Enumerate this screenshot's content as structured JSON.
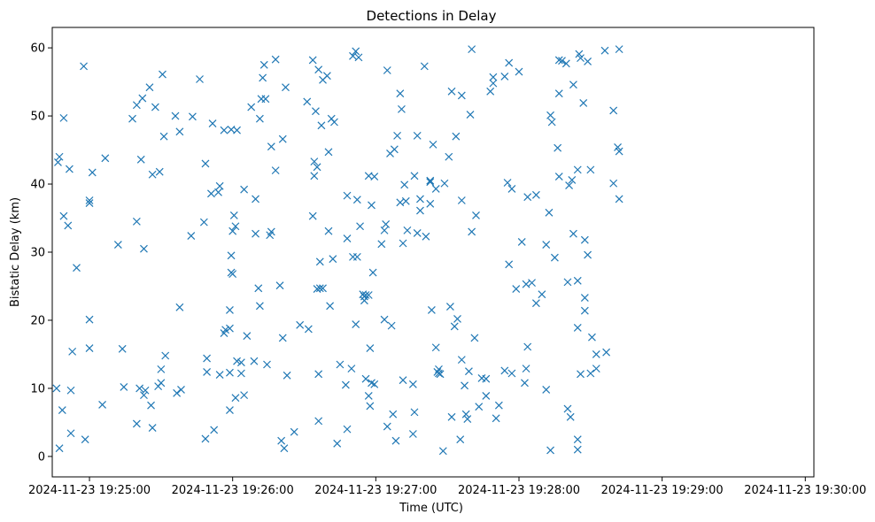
{
  "chart_data": {
    "type": "scatter",
    "title": "Detections in Delay",
    "xlabel": "Time (UTC)",
    "ylabel": "Bistatic Delay (km)",
    "marker": "x",
    "color": "#1f77b4",
    "x_unit": "minutes since 2024-11-23 19:25:00",
    "xlim": [
      -0.26,
      5.06
    ],
    "ylim": [
      -3,
      63
    ],
    "x_ticks": [
      {
        "value": 0,
        "label": "2024-11-23 19:25:00"
      },
      {
        "value": 1,
        "label": "2024-11-23 19:26:00"
      },
      {
        "value": 2,
        "label": "2024-11-23 19:27:00"
      },
      {
        "value": 3,
        "label": "2024-11-23 19:28:00"
      },
      {
        "value": 4,
        "label": "2024-11-23 19:29:00"
      },
      {
        "value": 5,
        "label": "2024-11-23 19:30:00"
      }
    ],
    "y_ticks": [
      0,
      10,
      20,
      30,
      40,
      50,
      60
    ],
    "points": [
      [
        -0.22,
        43.2
      ],
      [
        -0.21,
        44
      ],
      [
        -0.18,
        49.7
      ],
      [
        -0.18,
        35.3
      ],
      [
        -0.15,
        33.9
      ],
      [
        -0.14,
        42.2
      ],
      [
        -0.23,
        10
      ],
      [
        -0.21,
        1.2
      ],
      [
        -0.19,
        6.8
      ],
      [
        -0.13,
        9.7
      ],
      [
        -0.12,
        15.4
      ],
      [
        -0.13,
        3.4
      ],
      [
        -0.09,
        27.7
      ],
      [
        -0.04,
        57.3
      ],
      [
        -0.03,
        2.5
      ],
      [
        0,
        37.6
      ],
      [
        0,
        37.2
      ],
      [
        0,
        20.1
      ],
      [
        0,
        15.9
      ],
      [
        0.02,
        41.7
      ],
      [
        0.11,
        43.8
      ],
      [
        0.09,
        7.6
      ],
      [
        0.2,
        31.1
      ],
      [
        0.23,
        15.8
      ],
      [
        0.24,
        10.2
      ],
      [
        0.3,
        49.6
      ],
      [
        0.33,
        51.6
      ],
      [
        0.33,
        34.5
      ],
      [
        0.37,
        52.6
      ],
      [
        0.36,
        43.6
      ],
      [
        0.38,
        30.5
      ],
      [
        0.42,
        54.2
      ],
      [
        0.46,
        51.3
      ],
      [
        0.44,
        41.4
      ],
      [
        0.49,
        41.8
      ],
      [
        0.52,
        47
      ],
      [
        0.51,
        56.1
      ],
      [
        0.33,
        4.8
      ],
      [
        0.35,
        10
      ],
      [
        0.38,
        9
      ],
      [
        0.39,
        9.7
      ],
      [
        0.43,
        7.5
      ],
      [
        0.44,
        4.2
      ],
      [
        0.48,
        10.3
      ],
      [
        0.5,
        12.8
      ],
      [
        0.5,
        10.8
      ],
      [
        0.53,
        14.8
      ],
      [
        0.6,
        50
      ],
      [
        0.63,
        47.7
      ],
      [
        0.63,
        21.9
      ],
      [
        0.61,
        9.3
      ],
      [
        0.64,
        9.8
      ],
      [
        0.72,
        49.9
      ],
      [
        0.71,
        32.4
      ],
      [
        0.77,
        55.4
      ],
      [
        0.81,
        43
      ],
      [
        0.8,
        34.4
      ],
      [
        0.86,
        48.9
      ],
      [
        0.85,
        38.6
      ],
      [
        0.9,
        38.8
      ],
      [
        0.91,
        39.7
      ],
      [
        0.82,
        14.4
      ],
      [
        0.82,
        12.4
      ],
      [
        0.81,
        2.6
      ],
      [
        0.87,
        3.9
      ],
      [
        0.91,
        12
      ],
      [
        0.94,
        18.1
      ],
      [
        0.95,
        18.6
      ],
      [
        0.98,
        18.8
      ],
      [
        0.98,
        21.5
      ],
      [
        0.94,
        47.9
      ],
      [
        0.99,
        48
      ],
      [
        1.03,
        47.9
      ],
      [
        1.01,
        35.4
      ],
      [
        1.0,
        33.1
      ],
      [
        1.02,
        33.8
      ],
      [
        0.99,
        29.5
      ],
      [
        0.99,
        27
      ],
      [
        1.0,
        26.8
      ],
      [
        0.98,
        12.3
      ],
      [
        0.98,
        6.8
      ],
      [
        1.02,
        8.6
      ],
      [
        1.03,
        14
      ],
      [
        1.06,
        13.8
      ],
      [
        1.06,
        12.2
      ],
      [
        1.08,
        9
      ],
      [
        1.1,
        17.7
      ],
      [
        1.08,
        39.2
      ],
      [
        1.13,
        51.3
      ],
      [
        1.16,
        37.8
      ],
      [
        1.19,
        49.6
      ],
      [
        1.16,
        32.7
      ],
      [
        1.2,
        52.5
      ],
      [
        1.23,
        52.5
      ],
      [
        1.21,
        55.6
      ],
      [
        1.22,
        57.5
      ],
      [
        1.19,
        22.1
      ],
      [
        1.18,
        24.7
      ],
      [
        1.15,
        14
      ],
      [
        1.24,
        13.5
      ],
      [
        1.26,
        32.5
      ],
      [
        1.27,
        33
      ],
      [
        1.27,
        45.5
      ],
      [
        1.3,
        42
      ],
      [
        1.3,
        58.3
      ],
      [
        1.35,
        46.6
      ],
      [
        1.37,
        54.2
      ],
      [
        1.33,
        25.1
      ],
      [
        1.35,
        17.4
      ],
      [
        1.38,
        11.9
      ],
      [
        1.34,
        2.3
      ],
      [
        1.36,
        1.2
      ],
      [
        1.43,
        3.6
      ],
      [
        1.47,
        19.3
      ],
      [
        1.52,
        52.1
      ],
      [
        1.53,
        18.7
      ],
      [
        1.56,
        58.2
      ],
      [
        1.58,
        50.7
      ],
      [
        1.57,
        43.3
      ],
      [
        1.57,
        41.2
      ],
      [
        1.59,
        42.5
      ],
      [
        1.56,
        35.3
      ],
      [
        1.6,
        56.8
      ],
      [
        1.63,
        55.3
      ],
      [
        1.66,
        55.9
      ],
      [
        1.62,
        48.6
      ],
      [
        1.67,
        44.7
      ],
      [
        1.69,
        49.6
      ],
      [
        1.71,
        49.1
      ],
      [
        1.61,
        28.6
      ],
      [
        1.67,
        33.1
      ],
      [
        1.7,
        29
      ],
      [
        1.59,
        24.6
      ],
      [
        1.61,
        24.7
      ],
      [
        1.63,
        24.7
      ],
      [
        1.68,
        22.1
      ],
      [
        1.6,
        12.1
      ],
      [
        1.6,
        5.2
      ],
      [
        1.73,
        1.9
      ],
      [
        1.75,
        13.5
      ],
      [
        1.79,
        10.5
      ],
      [
        1.8,
        4
      ],
      [
        1.83,
        12.9
      ],
      [
        1.8,
        38.3
      ],
      [
        1.87,
        37.7
      ],
      [
        1.8,
        32
      ],
      [
        1.84,
        29.3
      ],
      [
        1.87,
        29.3
      ],
      [
        1.89,
        33.8
      ],
      [
        1.84,
        58.8
      ],
      [
        1.86,
        59.5
      ],
      [
        1.88,
        58.6
      ],
      [
        1.86,
        19.4
      ],
      [
        1.91,
        23.8
      ],
      [
        1.92,
        23.5
      ],
      [
        1.93,
        23.7
      ],
      [
        1.92,
        22.9
      ],
      [
        1.95,
        23.7
      ],
      [
        1.93,
        11.4
      ],
      [
        1.95,
        8.9
      ],
      [
        1.96,
        7.4
      ],
      [
        1.97,
        10.8
      ],
      [
        1.99,
        10.6
      ],
      [
        1.96,
        15.9
      ],
      [
        1.98,
        27
      ],
      [
        1.97,
        36.9
      ],
      [
        1.95,
        41.2
      ],
      [
        1.99,
        41.1
      ],
      [
        2.04,
        31.2
      ],
      [
        2.06,
        33.2
      ],
      [
        2.07,
        34.1
      ],
      [
        2.08,
        4.4
      ],
      [
        2.06,
        20.1
      ],
      [
        2.11,
        19.2
      ],
      [
        2.12,
        6.2
      ],
      [
        2.14,
        2.3
      ],
      [
        2.08,
        56.7
      ],
      [
        2.1,
        44.5
      ],
      [
        2.13,
        45.1
      ],
      [
        2.15,
        47.1
      ],
      [
        2.17,
        53.3
      ],
      [
        2.18,
        51
      ],
      [
        2.2,
        39.9
      ],
      [
        2.21,
        37.5
      ],
      [
        2.17,
        37.3
      ],
      [
        2.19,
        31.3
      ],
      [
        2.22,
        33.2
      ],
      [
        2.19,
        11.2
      ],
      [
        2.26,
        10.6
      ],
      [
        2.27,
        6.5
      ],
      [
        2.26,
        3.3
      ],
      [
        2.29,
        47.1
      ],
      [
        2.27,
        41.2
      ],
      [
        2.29,
        32.8
      ],
      [
        2.31,
        37.8
      ],
      [
        2.31,
        36.1
      ],
      [
        2.35,
        32.3
      ],
      [
        2.34,
        57.3
      ],
      [
        2.38,
        40.5
      ],
      [
        2.38,
        40.3
      ],
      [
        2.4,
        45.8
      ],
      [
        2.42,
        39.3
      ],
      [
        2.38,
        37.1
      ],
      [
        2.39,
        21.5
      ],
      [
        2.42,
        16
      ],
      [
        2.43,
        12.4
      ],
      [
        2.44,
        12.8
      ],
      [
        2.44,
        12.2
      ],
      [
        2.45,
        12.1
      ],
      [
        2.48,
        40.1
      ],
      [
        2.51,
        44
      ],
      [
        2.53,
        53.6
      ],
      [
        2.56,
        47
      ],
      [
        2.47,
        0.8
      ],
      [
        2.53,
        5.8
      ],
      [
        2.52,
        22
      ],
      [
        2.55,
        19.1
      ],
      [
        2.57,
        20.2
      ],
      [
        2.6,
        53
      ],
      [
        2.6,
        37.6
      ],
      [
        2.6,
        14.2
      ],
      [
        2.62,
        10.4
      ],
      [
        2.59,
        2.5
      ],
      [
        2.63,
        6.2
      ],
      [
        2.64,
        5.5
      ],
      [
        2.65,
        12.5
      ],
      [
        2.66,
        50.2
      ],
      [
        2.67,
        33
      ],
      [
        2.67,
        59.8
      ],
      [
        2.7,
        35.4
      ],
      [
        2.69,
        17.4
      ],
      [
        2.72,
        7.3
      ],
      [
        2.74,
        11.5
      ],
      [
        2.77,
        11.4
      ],
      [
        2.77,
        8.9
      ],
      [
        2.8,
        53.6
      ],
      [
        2.82,
        54.8
      ],
      [
        2.82,
        55.7
      ],
      [
        2.84,
        5.6
      ],
      [
        2.86,
        7.5
      ],
      [
        2.9,
        55.8
      ],
      [
        2.9,
        12.6
      ],
      [
        2.93,
        57.8
      ],
      [
        2.93,
        28.2
      ],
      [
        2.92,
        40.2
      ],
      [
        2.95,
        39.3
      ],
      [
        2.95,
        12.2
      ],
      [
        2.98,
        24.6
      ],
      [
        3.0,
        56.5
      ],
      [
        3.02,
        31.5
      ],
      [
        3.05,
        25.3
      ],
      [
        3.06,
        16.1
      ],
      [
        3.05,
        12.9
      ],
      [
        3.04,
        10.8
      ],
      [
        3.06,
        38.1
      ],
      [
        3.09,
        25.5
      ],
      [
        3.12,
        38.4
      ],
      [
        3.12,
        22.5
      ],
      [
        3.16,
        23.8
      ],
      [
        3.19,
        31.1
      ],
      [
        3.19,
        9.8
      ],
      [
        3.21,
        35.8
      ],
      [
        3.22,
        50.1
      ],
      [
        3.23,
        49.1
      ],
      [
        3.22,
        0.9
      ],
      [
        3.25,
        29.2
      ],
      [
        3.27,
        45.3
      ],
      [
        3.28,
        41.1
      ],
      [
        3.28,
        53.3
      ],
      [
        3.28,
        58.2
      ],
      [
        3.3,
        58.1
      ],
      [
        3.33,
        57.7
      ],
      [
        3.35,
        39.8
      ],
      [
        3.37,
        40.6
      ],
      [
        3.38,
        54.6
      ],
      [
        3.38,
        32.7
      ],
      [
        3.34,
        25.6
      ],
      [
        3.41,
        18.9
      ],
      [
        3.41,
        42.1
      ],
      [
        3.42,
        59.1
      ],
      [
        3.43,
        58.5
      ],
      [
        3.41,
        25.8
      ],
      [
        3.34,
        7
      ],
      [
        3.36,
        5.8
      ],
      [
        3.41,
        2.5
      ],
      [
        3.41,
        1
      ],
      [
        3.43,
        12.1
      ],
      [
        3.45,
        51.9
      ],
      [
        3.46,
        31.8
      ],
      [
        3.46,
        23.3
      ],
      [
        3.46,
        21.4
      ],
      [
        3.48,
        29.6
      ],
      [
        3.48,
        58
      ],
      [
        3.5,
        42.1
      ],
      [
        3.5,
        12.2
      ],
      [
        3.51,
        17.5
      ],
      [
        3.54,
        12.9
      ],
      [
        3.54,
        15
      ],
      [
        3.6,
        59.6
      ],
      [
        3.61,
        15.3
      ],
      [
        3.66,
        50.8
      ],
      [
        3.66,
        40.1
      ],
      [
        3.69,
        45.4
      ],
      [
        3.7,
        44.8
      ],
      [
        3.7,
        37.8
      ],
      [
        3.7,
        59.8
      ]
    ]
  }
}
